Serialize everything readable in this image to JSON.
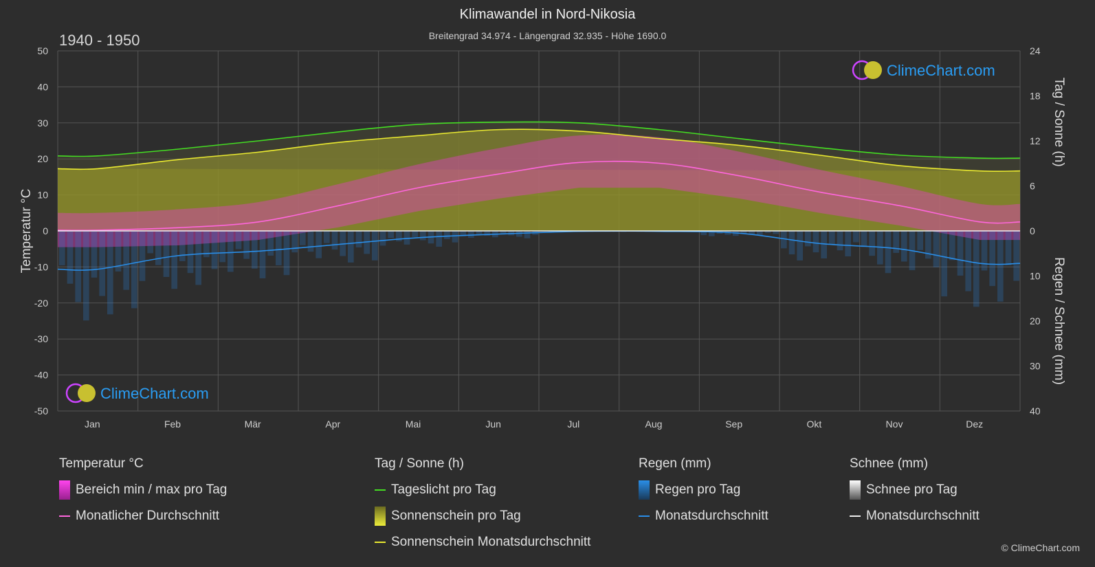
{
  "header": {
    "title": "Klimawandel in Nord-Nikosia",
    "subtitle": "Breitengrad 34.974 - Längengrad 32.935 - Höhe 1690.0",
    "period": "1940 - 1950"
  },
  "logo": {
    "text": "ClimeChart.com"
  },
  "copyright": "© ClimeChart.com",
  "colors": {
    "background": "#2d2d2d",
    "grid": "#555555",
    "daylight": "#44dd22",
    "sunshine_line": "#eaea30",
    "sunshine_fill": "#8f8f2c",
    "temp_range": "#e040c0",
    "temp_avg": "#ff66dd",
    "rain": "#2a7fd0",
    "rain_avg": "#2a8ee8",
    "snow": "#dddddd",
    "logo_text": "#2a9df4"
  },
  "legend": {
    "temperature": {
      "title": "Temperatur °C",
      "items": [
        {
          "label": "Bereich min / max pro Tag",
          "swatch": "temp-range"
        },
        {
          "label": "Monatlicher Durchschnitt",
          "swatch": "temp-avg"
        }
      ]
    },
    "sun": {
      "title": "Tag / Sonne (h)",
      "items": [
        {
          "label": "Tageslicht pro Tag",
          "swatch": "daylight"
        },
        {
          "label": "Sonnenschein pro Tag",
          "swatch": "sunshine-fill"
        },
        {
          "label": "Sonnenschein Monatsdurchschnitt",
          "swatch": "sunshine-line"
        }
      ]
    },
    "rain": {
      "title": "Regen (mm)",
      "items": [
        {
          "label": "Regen pro Tag",
          "swatch": "rain"
        },
        {
          "label": "Monatsdurchschnitt",
          "swatch": "rain-avg"
        }
      ]
    },
    "snow": {
      "title": "Schnee (mm)",
      "items": [
        {
          "label": "Schnee pro Tag",
          "swatch": "snow"
        },
        {
          "label": "Monatsdurchschnitt",
          "swatch": "snow-avg"
        }
      ]
    }
  },
  "chart_data": {
    "type": "area",
    "categories": [
      "Jan",
      "Feb",
      "Mär",
      "Apr",
      "Mai",
      "Jun",
      "Jul",
      "Aug",
      "Sep",
      "Okt",
      "Nov",
      "Dez"
    ],
    "y_left": {
      "label": "Temperatur °C",
      "range": [
        -50,
        50
      ],
      "ticks": [
        50,
        40,
        30,
        20,
        10,
        0,
        -10,
        -20,
        -30,
        -40,
        -50
      ]
    },
    "y_right_top": {
      "label": "Tag / Sonne (h)",
      "range": [
        0,
        24
      ],
      "ticks": [
        24,
        18,
        12,
        6,
        0
      ]
    },
    "y_right_bottom": {
      "label": "Regen / Schnee (mm)",
      "range": [
        0,
        40
      ],
      "ticks": [
        0,
        10,
        20,
        30,
        40
      ]
    },
    "grid": true,
    "series": [
      {
        "name": "Tageslicht pro Tag",
        "axis": "sun_h",
        "values": [
          10.0,
          10.9,
          12.0,
          13.2,
          14.2,
          14.5,
          14.4,
          13.5,
          12.3,
          11.1,
          10.1,
          9.7
        ]
      },
      {
        "name": "Sonnenschein Monatsdurchschnitt",
        "axis": "sun_h",
        "values": [
          8.3,
          9.5,
          10.5,
          11.8,
          12.7,
          13.5,
          13.3,
          12.3,
          11.4,
          10.1,
          8.7,
          8.0
        ]
      },
      {
        "name": "Monatlicher Durchschnitt",
        "axis": "temp_c",
        "values": [
          0.2,
          0.9,
          2.5,
          7.0,
          12.0,
          15.8,
          19.0,
          18.8,
          15.3,
          10.8,
          7.0,
          2.5
        ]
      },
      {
        "name": "Temperatur min",
        "axis": "temp_c",
        "values": [
          -4.5,
          -4.0,
          -2.5,
          1.0,
          5.5,
          9.0,
          12.0,
          12.0,
          9.0,
          5.0,
          1.5,
          -2.5
        ]
      },
      {
        "name": "Temperatur max",
        "axis": "temp_c",
        "values": [
          5.0,
          6.0,
          8.0,
          13.0,
          18.5,
          23.0,
          26.5,
          26.0,
          22.0,
          17.0,
          12.5,
          7.5
        ]
      },
      {
        "name": "Regen Monatsdurchschnitt",
        "axis": "rain_mm",
        "values": [
          8.5,
          5.5,
          4.5,
          3.0,
          1.5,
          0.7,
          0.1,
          0.1,
          0.5,
          2.8,
          4.0,
          7.2
        ]
      }
    ]
  }
}
